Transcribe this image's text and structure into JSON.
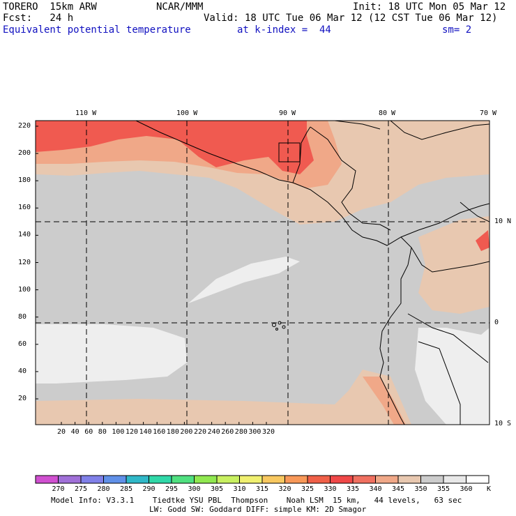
{
  "header": {
    "model": "TORERO  15km ARW",
    "center": "NCAR/MMM",
    "init": "Init: 18 UTC Mon 05 Mar 12",
    "fcst": "Fcst:   24 h",
    "valid": "Valid: 18 UTC Tue 06 Mar 12 (12 CST Tue 06 Mar 12)",
    "field": "Equivalent potential temperature",
    "level": "at k-index =  44",
    "smooth": "sm= 2"
  },
  "axes": {
    "top_lon": [
      "110 W",
      "100 W",
      "90 W",
      "80 W",
      "70 W"
    ],
    "right_lat": [
      "10 N",
      "0",
      "10 S"
    ],
    "left_y": [
      "220",
      "200",
      "180",
      "160",
      "140",
      "120",
      "100",
      "80",
      "60",
      "40",
      "20"
    ],
    "bottom_x": [
      "20",
      "40",
      "60",
      "80",
      "100",
      "120",
      "140",
      "160",
      "180",
      "200",
      "220",
      "240",
      "260",
      "280",
      "300",
      "320"
    ]
  },
  "colorbar": {
    "labels": [
      "270",
      "275",
      "280",
      "285",
      "290",
      "295",
      "300",
      "305",
      "310",
      "315",
      "320",
      "325",
      "330",
      "335",
      "340",
      "345",
      "350",
      "355",
      "360"
    ],
    "unit": "K",
    "colors": [
      "#d050d0",
      "#a070d8",
      "#8080e8",
      "#6090e8",
      "#30b8c8",
      "#30d8a8",
      "#50e080",
      "#90e850",
      "#c8f060",
      "#f0f070",
      "#f8c860",
      "#f89858",
      "#f06048",
      "#f04848",
      "#f07060",
      "#f0a888",
      "#e8c8b0",
      "#cccccc",
      "#e8e8e8",
      "#ffffff"
    ]
  },
  "footer": {
    "line1": "Model Info: V3.3.1    Tiedtke YSU PBL  Thompson    Noah LSM  15 km,   44 levels,   63 sec",
    "line2": "LW: Godd SW: Goddard DIFF: simple KM: 2D Smagor"
  },
  "palette": {
    "grey": "#cccccc",
    "tan": "#e8c8b0",
    "salmon": "#f0a888",
    "red": "#f05a50",
    "light": "#eeeeee"
  }
}
